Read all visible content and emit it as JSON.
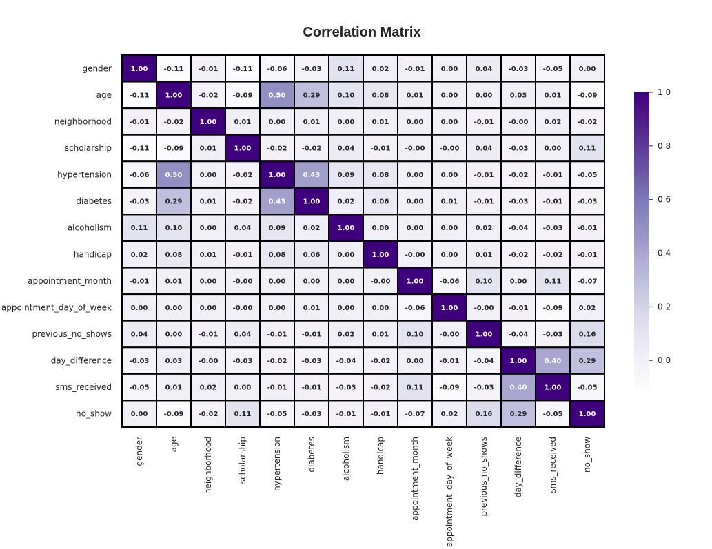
{
  "chart_data": {
    "type": "heatmap",
    "title": "Correlation Matrix",
    "labels": [
      "gender",
      "age",
      "neighborhood",
      "scholarship",
      "hypertension",
      "diabetes",
      "alcoholism",
      "handicap",
      "appointment_month",
      "appointment_day_of_week",
      "previous_no_shows",
      "day_difference",
      "sms_received",
      "no_show"
    ],
    "matrix": [
      [
        1.0,
        -0.11,
        -0.01,
        -0.11,
        -0.06,
        -0.03,
        0.11,
        0.02,
        -0.01,
        0.0,
        0.04,
        -0.03,
        -0.05,
        0.0
      ],
      [
        -0.11,
        1.0,
        -0.02,
        -0.09,
        0.5,
        0.29,
        0.1,
        0.08,
        0.01,
        0.0,
        0.0,
        0.03,
        0.01,
        -0.09
      ],
      [
        -0.01,
        -0.02,
        1.0,
        0.01,
        0.0,
        0.01,
        0.0,
        0.01,
        0.0,
        0.0,
        -0.01,
        -0.0,
        0.02,
        -0.02
      ],
      [
        -0.11,
        -0.09,
        0.01,
        1.0,
        -0.02,
        -0.02,
        0.04,
        -0.01,
        -0.0,
        -0.0,
        0.04,
        -0.03,
        0.0,
        0.11
      ],
      [
        -0.06,
        0.5,
        0.0,
        -0.02,
        1.0,
        0.43,
        0.09,
        0.08,
        0.0,
        0.0,
        -0.01,
        -0.02,
        -0.01,
        -0.05
      ],
      [
        -0.03,
        0.29,
        0.01,
        -0.02,
        0.43,
        1.0,
        0.02,
        0.06,
        0.0,
        0.01,
        -0.01,
        -0.03,
        -0.01,
        -0.03
      ],
      [
        0.11,
        0.1,
        0.0,
        0.04,
        0.09,
        0.02,
        1.0,
        0.0,
        0.0,
        0.0,
        0.02,
        -0.04,
        -0.03,
        -0.01
      ],
      [
        0.02,
        0.08,
        0.01,
        -0.01,
        0.08,
        0.06,
        0.0,
        1.0,
        -0.0,
        0.0,
        0.01,
        -0.02,
        -0.02,
        -0.01
      ],
      [
        -0.01,
        0.01,
        0.0,
        -0.0,
        0.0,
        0.0,
        0.0,
        -0.0,
        1.0,
        -0.06,
        0.1,
        0.0,
        0.11,
        -0.07
      ],
      [
        0.0,
        0.0,
        0.0,
        -0.0,
        0.0,
        0.01,
        0.0,
        0.0,
        -0.06,
        1.0,
        -0.0,
        -0.01,
        -0.09,
        0.02
      ],
      [
        0.04,
        0.0,
        -0.01,
        0.04,
        -0.01,
        -0.01,
        0.02,
        0.01,
        0.1,
        -0.0,
        1.0,
        -0.04,
        -0.03,
        0.16
      ],
      [
        -0.03,
        0.03,
        -0.0,
        -0.03,
        -0.02,
        -0.03,
        -0.04,
        -0.02,
        0.0,
        -0.01,
        -0.04,
        1.0,
        0.4,
        0.29
      ],
      [
        -0.05,
        0.01,
        0.02,
        0.0,
        -0.01,
        -0.01,
        -0.03,
        -0.02,
        0.11,
        -0.09,
        -0.03,
        0.4,
        1.0,
        -0.05
      ],
      [
        0.0,
        -0.09,
        -0.02,
        0.11,
        -0.05,
        -0.03,
        -0.01,
        -0.01,
        -0.07,
        0.02,
        0.16,
        0.29,
        -0.05,
        1.0
      ]
    ],
    "display": [
      [
        "1.00",
        "-0.11",
        "-0.01",
        "-0.11",
        "-0.06",
        "-0.03",
        "0.11",
        "0.02",
        "-0.01",
        "0.00",
        "0.04",
        "-0.03",
        "-0.05",
        "0.00"
      ],
      [
        "-0.11",
        "1.00",
        "-0.02",
        "-0.09",
        "0.50",
        "0.29",
        "0.10",
        "0.08",
        "0.01",
        "0.00",
        "0.00",
        "0.03",
        "0.01",
        "-0.09"
      ],
      [
        "-0.01",
        "-0.02",
        "1.00",
        "0.01",
        "0.00",
        "0.01",
        "0.00",
        "0.01",
        "0.00",
        "0.00",
        "-0.01",
        "-0.00",
        "0.02",
        "-0.02"
      ],
      [
        "-0.11",
        "-0.09",
        "0.01",
        "1.00",
        "-0.02",
        "-0.02",
        "0.04",
        "-0.01",
        "-0.00",
        "-0.00",
        "0.04",
        "-0.03",
        "0.00",
        "0.11"
      ],
      [
        "-0.06",
        "0.50",
        "0.00",
        "-0.02",
        "1.00",
        "0.43",
        "0.09",
        "0.08",
        "0.00",
        "0.00",
        "-0.01",
        "-0.02",
        "-0.01",
        "-0.05"
      ],
      [
        "-0.03",
        "0.29",
        "0.01",
        "-0.02",
        "0.43",
        "1.00",
        "0.02",
        "0.06",
        "0.00",
        "0.01",
        "-0.01",
        "-0.03",
        "-0.01",
        "-0.03"
      ],
      [
        "0.11",
        "0.10",
        "0.00",
        "0.04",
        "0.09",
        "0.02",
        "1.00",
        "0.00",
        "0.00",
        "0.00",
        "0.02",
        "-0.04",
        "-0.03",
        "-0.01"
      ],
      [
        "0.02",
        "0.08",
        "0.01",
        "-0.01",
        "0.08",
        "0.06",
        "0.00",
        "1.00",
        "-0.00",
        "0.00",
        "0.01",
        "-0.02",
        "-0.02",
        "-0.01"
      ],
      [
        "-0.01",
        "0.01",
        "0.00",
        "-0.00",
        "0.00",
        "0.00",
        "0.00",
        "-0.00",
        "1.00",
        "-0.06",
        "0.10",
        "0.00",
        "0.11",
        "-0.07"
      ],
      [
        "0.00",
        "0.00",
        "0.00",
        "-0.00",
        "0.00",
        "0.01",
        "0.00",
        "0.00",
        "-0.06",
        "1.00",
        "-0.00",
        "-0.01",
        "-0.09",
        "0.02"
      ],
      [
        "0.04",
        "0.00",
        "-0.01",
        "0.04",
        "-0.01",
        "-0.01",
        "0.02",
        "0.01",
        "0.10",
        "-0.00",
        "1.00",
        "-0.04",
        "-0.03",
        "0.16"
      ],
      [
        "-0.03",
        "0.03",
        "-0.00",
        "-0.03",
        "-0.02",
        "-0.03",
        "-0.04",
        "-0.02",
        "0.00",
        "-0.01",
        "-0.04",
        "1.00",
        "0.40",
        "0.29"
      ],
      [
        "-0.05",
        "0.01",
        "0.02",
        "0.00",
        "-0.01",
        "-0.01",
        "-0.03",
        "-0.02",
        "0.11",
        "-0.09",
        "-0.03",
        "0.40",
        "1.00",
        "-0.05"
      ],
      [
        "0.00",
        "-0.09",
        "-0.02",
        "0.11",
        "-0.05",
        "-0.03",
        "-0.01",
        "-0.01",
        "-0.07",
        "0.02",
        "0.16",
        "0.29",
        "-0.05",
        "1.00"
      ]
    ],
    "vmin": -0.11,
    "vmax": 1.0,
    "colormap": "Purples",
    "colormap_stops": [
      "#fcfbfd",
      "#efedf5",
      "#dadaeb",
      "#bcbddc",
      "#9e9ac8",
      "#807dba",
      "#6a51a3",
      "#54278f",
      "#3f007d"
    ],
    "colorbar_ticks": [
      "0.0",
      "0.2",
      "0.4",
      "0.6",
      "0.8",
      "1.0"
    ],
    "cell_border_color": "#000000",
    "grid": false
  }
}
